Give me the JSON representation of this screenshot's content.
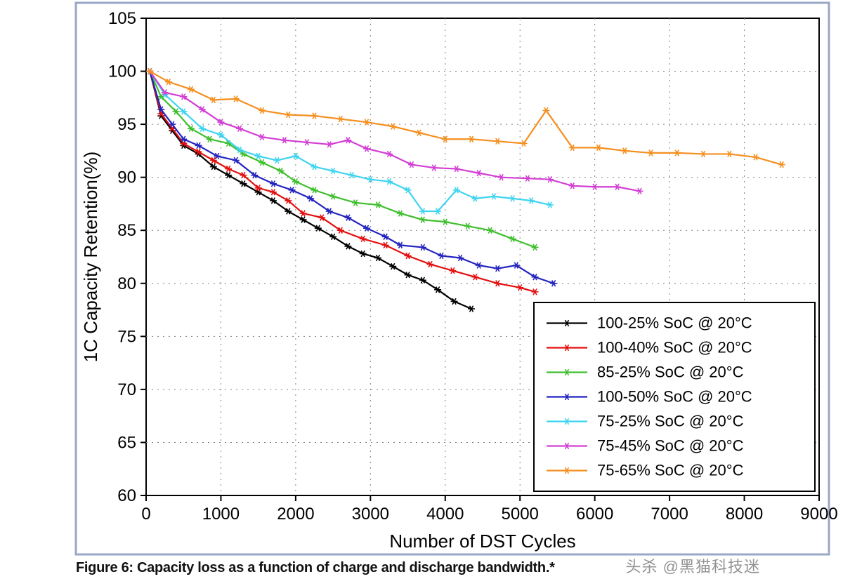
{
  "chart": {
    "type": "line",
    "plot_bg": "#ffffff",
    "outer_border_color": "#9aa7c7",
    "outer_border_width": 3,
    "grid": {
      "color": "#808080",
      "dash": "2 6",
      "width": 1
    },
    "axes": {
      "stroke": "#000000",
      "width": 2,
      "x": {
        "min": 0,
        "max": 9000,
        "step": 1000,
        "ticks": [
          0,
          1000,
          2000,
          3000,
          4000,
          5000,
          6000,
          7000,
          8000,
          9000
        ],
        "label": "Number of DST Cycles",
        "label_fontsize": 26,
        "tick_fontsize": 24
      },
      "y": {
        "min": 60,
        "max": 105,
        "step": 5,
        "ticks": [
          60,
          65,
          70,
          75,
          80,
          85,
          90,
          95,
          100,
          105
        ],
        "label": "1C Capacity Retention(%)",
        "label_fontsize": 26,
        "tick_fontsize": 24
      }
    },
    "marker": {
      "size": 5,
      "inner": 3.2
    },
    "line_width": 2.2,
    "series": [
      {
        "label": "100-25% SoC @ 20°C",
        "color": "#000000",
        "data": [
          [
            50,
            100
          ],
          [
            200,
            95.8
          ],
          [
            350,
            94.4
          ],
          [
            500,
            93.0
          ],
          [
            700,
            92.2
          ],
          [
            900,
            91.0
          ],
          [
            1100,
            90.2
          ],
          [
            1300,
            89.4
          ],
          [
            1500,
            88.6
          ],
          [
            1700,
            87.8
          ],
          [
            1900,
            86.8
          ],
          [
            2100,
            86.0
          ],
          [
            2300,
            85.2
          ],
          [
            2500,
            84.4
          ],
          [
            2700,
            83.5
          ],
          [
            2900,
            82.8
          ],
          [
            3100,
            82.4
          ],
          [
            3300,
            81.6
          ],
          [
            3500,
            80.8
          ],
          [
            3700,
            80.3
          ],
          [
            3900,
            79.4
          ],
          [
            4120,
            78.3
          ],
          [
            4350,
            77.6
          ]
        ]
      },
      {
        "label": "100-40% SoC @ 20°C",
        "color": "#e30f0f",
        "data": [
          [
            50,
            100
          ],
          [
            200,
            96.0
          ],
          [
            350,
            94.6
          ],
          [
            500,
            93.2
          ],
          [
            700,
            92.4
          ],
          [
            900,
            91.6
          ],
          [
            1100,
            90.8
          ],
          [
            1300,
            90.2
          ],
          [
            1500,
            89.0
          ],
          [
            1700,
            88.6
          ],
          [
            1900,
            87.8
          ],
          [
            2100,
            86.6
          ],
          [
            2350,
            86.2
          ],
          [
            2600,
            85.0
          ],
          [
            2900,
            84.2
          ],
          [
            3200,
            83.6
          ],
          [
            3500,
            82.6
          ],
          [
            3800,
            81.8
          ],
          [
            4100,
            81.2
          ],
          [
            4400,
            80.6
          ],
          [
            4700,
            80.0
          ],
          [
            5000,
            79.6
          ],
          [
            5200,
            79.2
          ]
        ]
      },
      {
        "label": "  85-25% SoC @ 20°C",
        "color": "#3fbf2d",
        "data": [
          [
            50,
            100
          ],
          [
            200,
            97.6
          ],
          [
            400,
            96.2
          ],
          [
            600,
            94.6
          ],
          [
            850,
            93.6
          ],
          [
            1100,
            93.2
          ],
          [
            1300,
            92.2
          ],
          [
            1550,
            91.4
          ],
          [
            1800,
            90.6
          ],
          [
            2000,
            89.6
          ],
          [
            2250,
            88.8
          ],
          [
            2500,
            88.2
          ],
          [
            2800,
            87.6
          ],
          [
            3100,
            87.4
          ],
          [
            3400,
            86.6
          ],
          [
            3700,
            86.0
          ],
          [
            4000,
            85.8
          ],
          [
            4300,
            85.4
          ],
          [
            4600,
            85.0
          ],
          [
            4900,
            84.2
          ],
          [
            5200,
            83.4
          ]
        ]
      },
      {
        "label": "100-50% SoC @ 20°C",
        "color": "#2323c0",
        "data": [
          [
            50,
            100
          ],
          [
            200,
            96.4
          ],
          [
            350,
            95.0
          ],
          [
            500,
            93.6
          ],
          [
            700,
            93.0
          ],
          [
            950,
            92.0
          ],
          [
            1200,
            91.6
          ],
          [
            1450,
            90.2
          ],
          [
            1700,
            89.4
          ],
          [
            1950,
            88.8
          ],
          [
            2200,
            88.0
          ],
          [
            2450,
            86.8
          ],
          [
            2700,
            86.2
          ],
          [
            2950,
            85.2
          ],
          [
            3200,
            84.4
          ],
          [
            3400,
            83.6
          ],
          [
            3700,
            83.4
          ],
          [
            3950,
            82.6
          ],
          [
            4200,
            82.4
          ],
          [
            4450,
            81.7
          ],
          [
            4700,
            81.4
          ],
          [
            4950,
            81.7
          ],
          [
            5200,
            80.6
          ],
          [
            5450,
            80.0
          ]
        ]
      },
      {
        "label": "  75-25% SoC @ 20°C",
        "color": "#3fd4f0",
        "data": [
          [
            50,
            100
          ],
          [
            250,
            97.8
          ],
          [
            500,
            96.2
          ],
          [
            750,
            94.6
          ],
          [
            1000,
            94.0
          ],
          [
            1250,
            92.6
          ],
          [
            1500,
            92.0
          ],
          [
            1750,
            91.6
          ],
          [
            2000,
            92.0
          ],
          [
            2250,
            91.0
          ],
          [
            2500,
            90.6
          ],
          [
            2750,
            90.2
          ],
          [
            3000,
            89.8
          ],
          [
            3250,
            89.6
          ],
          [
            3500,
            88.8
          ],
          [
            3700,
            86.8
          ],
          [
            3900,
            86.8
          ],
          [
            4150,
            88.8
          ],
          [
            4400,
            88.0
          ],
          [
            4650,
            88.2
          ],
          [
            4900,
            88.0
          ],
          [
            5150,
            87.8
          ],
          [
            5400,
            87.4
          ]
        ]
      },
      {
        "label": "  75-45% SoC @ 20°C",
        "color": "#d23fd4",
        "data": [
          [
            50,
            100
          ],
          [
            250,
            98.0
          ],
          [
            500,
            97.6
          ],
          [
            750,
            96.4
          ],
          [
            1000,
            95.2
          ],
          [
            1250,
            94.6
          ],
          [
            1550,
            93.8
          ],
          [
            1850,
            93.5
          ],
          [
            2150,
            93.3
          ],
          [
            2450,
            93.1
          ],
          [
            2700,
            93.5
          ],
          [
            2950,
            92.7
          ],
          [
            3250,
            92.2
          ],
          [
            3550,
            91.2
          ],
          [
            3850,
            90.9
          ],
          [
            4150,
            90.8
          ],
          [
            4450,
            90.4
          ],
          [
            4750,
            90.0
          ],
          [
            5100,
            89.9
          ],
          [
            5400,
            89.8
          ],
          [
            5700,
            89.2
          ],
          [
            6000,
            89.1
          ],
          [
            6300,
            89.1
          ],
          [
            6600,
            88.7
          ]
        ]
      },
      {
        "label": "  75-65% SoC @ 20°C",
        "color": "#f58f1f",
        "data": [
          [
            50,
            100
          ],
          [
            300,
            99.0
          ],
          [
            600,
            98.3
          ],
          [
            900,
            97.3
          ],
          [
            1200,
            97.4
          ],
          [
            1550,
            96.3
          ],
          [
            1900,
            95.9
          ],
          [
            2250,
            95.8
          ],
          [
            2600,
            95.5
          ],
          [
            2950,
            95.2
          ],
          [
            3300,
            94.8
          ],
          [
            3650,
            94.2
          ],
          [
            4000,
            93.6
          ],
          [
            4350,
            93.6
          ],
          [
            4700,
            93.4
          ],
          [
            5050,
            93.2
          ],
          [
            5350,
            96.3
          ],
          [
            5700,
            92.8
          ],
          [
            6050,
            92.8
          ],
          [
            6400,
            92.5
          ],
          [
            6750,
            92.3
          ],
          [
            7100,
            92.3
          ],
          [
            7450,
            92.2
          ],
          [
            7800,
            92.2
          ],
          [
            8150,
            91.9
          ],
          [
            8500,
            91.2
          ]
        ]
      }
    ],
    "legend": {
      "bg": "#ffffff",
      "border": "#000000",
      "fontsize": 22,
      "text_color": "#000000"
    }
  },
  "caption": "Figure 6: Capacity loss as a function of charge and discharge bandwidth.*",
  "watermark": "头杀 @黑猫科技迷"
}
